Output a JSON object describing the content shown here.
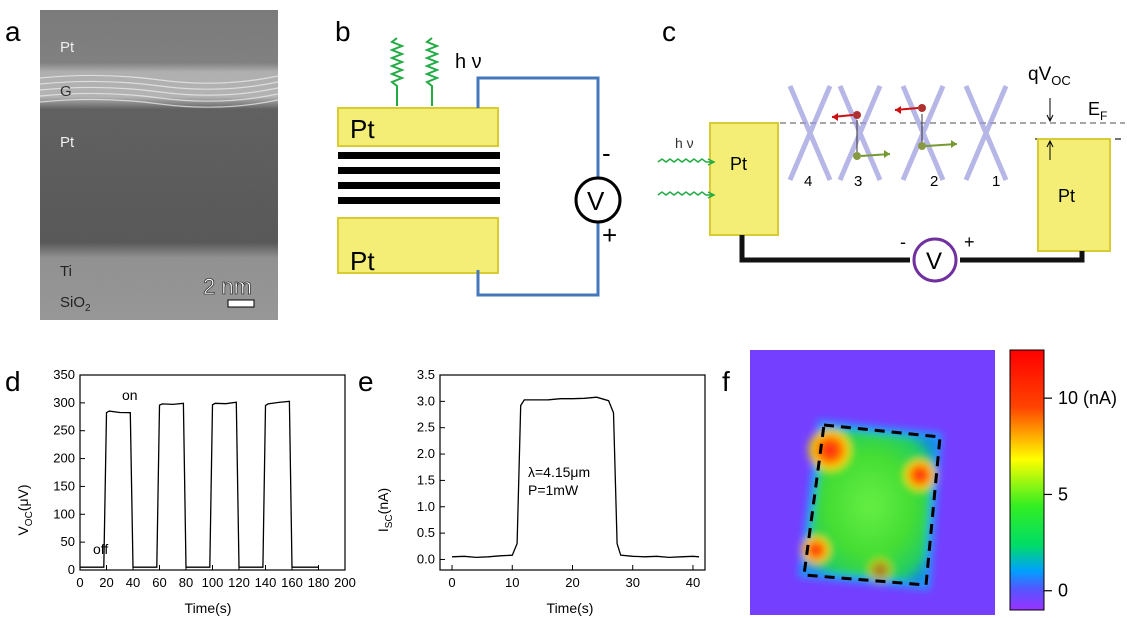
{
  "panels": {
    "a": "a",
    "b": "b",
    "c": "c",
    "d": "d",
    "e": "e",
    "f": "f"
  },
  "panel_a": {
    "layers": [
      "Pt",
      "G",
      "Pt",
      "Ti",
      "SiO2"
    ],
    "scale_bar": "2 nm"
  },
  "panel_b": {
    "light_label": "h ν",
    "top_electrode": "Pt",
    "bottom_electrode": "Pt",
    "meter": "V",
    "minus": "-",
    "plus": "+"
  },
  "panel_c": {
    "light_label": "h ν",
    "left_electrode": "Pt",
    "right_electrode": "Pt",
    "voltage_label": "qV",
    "voltage_sub": "OC",
    "fermi_label": "E",
    "fermi_sub": "F",
    "layer_numbers": [
      "4",
      "3",
      "2",
      "1"
    ],
    "meter": "V",
    "minus": "-",
    "plus": "+"
  },
  "panel_d": {
    "ylabel_main": "V",
    "ylabel_sub": "OC",
    "ylabel_rest": "(μV)",
    "xlabel": "Time(s)",
    "annotations": [
      "on",
      "off"
    ]
  },
  "panel_e": {
    "ylabel_main": "I",
    "ylabel_sub": "SC",
    "ylabel_rest": "(nA)",
    "xlabel": "Time(s)",
    "annotation_line1": "λ=4.15μm",
    "annotation_line2": "P=1mW"
  },
  "panel_f": {
    "colorbar_ticks": [
      "10 (nA)",
      "5",
      "0"
    ],
    "colors": {
      "high": "#ff0000",
      "mid": "#ffff00",
      "low": "#00ff00",
      "zero": "#00a0ff",
      "neg": "#9933ff"
    }
  },
  "chart_data": [
    {
      "type": "line",
      "panel": "d",
      "xlabel": "Time(s)",
      "ylabel": "VOC(μV)",
      "xlim": [
        0,
        200
      ],
      "ylim": [
        0,
        350
      ],
      "xticks": [
        0,
        20,
        40,
        60,
        80,
        100,
        120,
        140,
        160,
        180,
        200
      ],
      "yticks": [
        0,
        50,
        100,
        150,
        200,
        250,
        300,
        350
      ],
      "x": [
        0,
        18,
        20,
        22,
        30,
        38,
        40,
        42,
        58,
        60,
        62,
        70,
        78,
        80,
        82,
        98,
        100,
        102,
        110,
        118,
        120,
        122,
        138,
        140,
        142,
        150,
        158,
        160,
        162,
        180
      ],
      "y": [
        5,
        5,
        280,
        285,
        285,
        285,
        5,
        5,
        5,
        295,
        300,
        300,
        300,
        5,
        5,
        5,
        298,
        302,
        300,
        300,
        5,
        5,
        5,
        298,
        300,
        300,
        300,
        5,
        5,
        5
      ]
    },
    {
      "type": "line",
      "panel": "e",
      "xlabel": "Time(s)",
      "ylabel": "ISC(nA)",
      "xlim": [
        -2,
        42
      ],
      "ylim": [
        -0.2,
        3.5
      ],
      "xticks": [
        0,
        10,
        20,
        30,
        40
      ],
      "yticks": [
        0.0,
        0.5,
        1.0,
        1.5,
        2.0,
        2.5,
        3.0,
        3.5
      ],
      "x": [
        0,
        2,
        4,
        6,
        8,
        10,
        10.8,
        11.4,
        12,
        14,
        16,
        18,
        20,
        22,
        24,
        26,
        26.8,
        27.4,
        28,
        30,
        32,
        34,
        36,
        38,
        40,
        41
      ],
      "y": [
        0.05,
        0.06,
        0.04,
        0.05,
        0.07,
        0.08,
        0.3,
        2.9,
        3.0,
        3.02,
        3.05,
        3.08,
        3.06,
        3.04,
        3.05,
        3.0,
        2.8,
        0.3,
        0.08,
        0.06,
        0.05,
        0.06,
        0.04,
        0.05,
        0.06,
        0.05
      ]
    },
    {
      "type": "heatmap",
      "panel": "f",
      "colorbar_ticks": [
        10,
        5,
        0
      ],
      "colorbar_unit": "nA",
      "colorbar_range": [
        -1,
        12.5
      ]
    }
  ]
}
